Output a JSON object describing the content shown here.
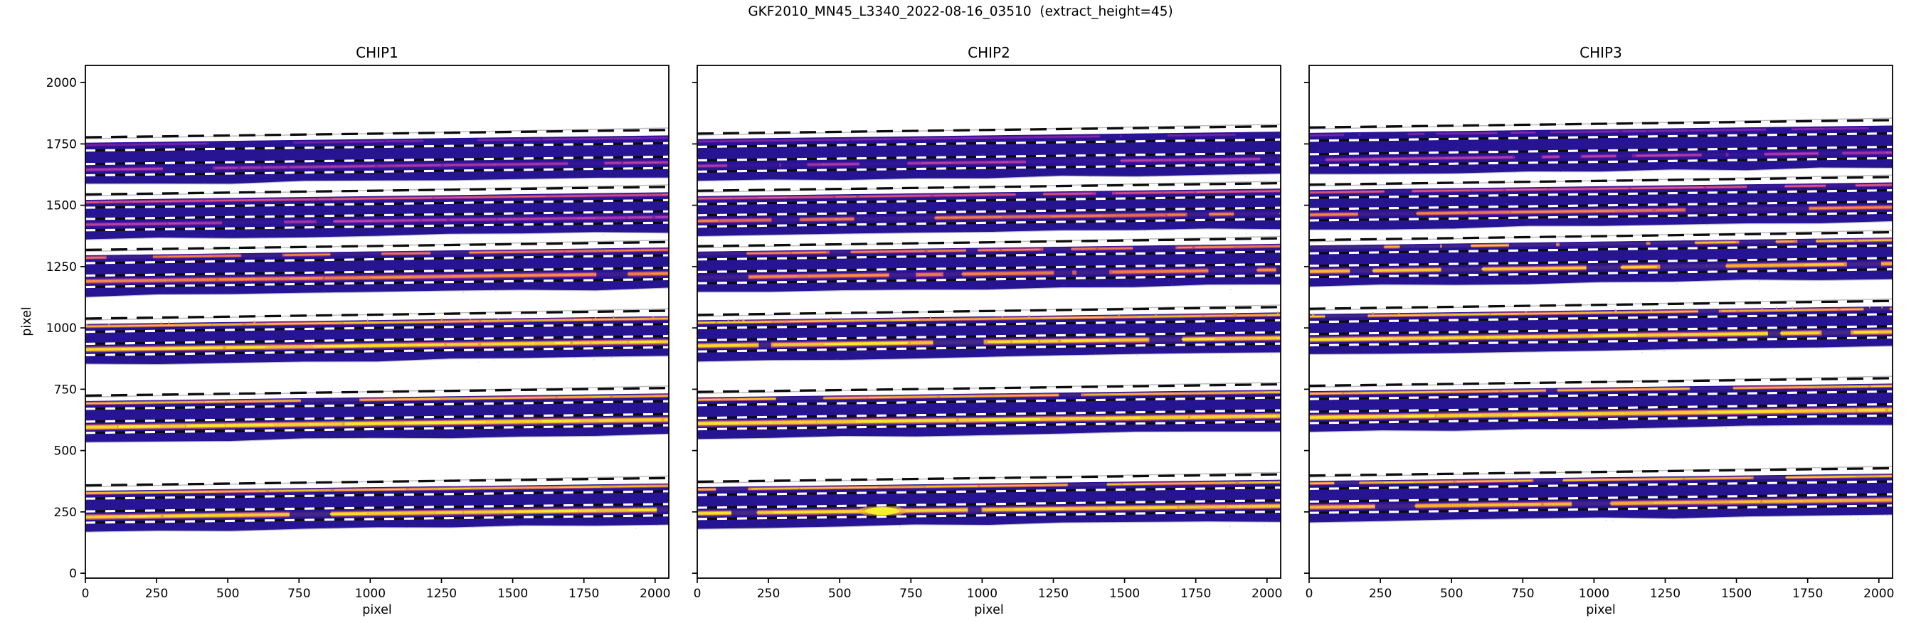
{
  "figure": {
    "suptitle": "GKF2010_MN45_L3340_2022-08-16_03510  (extract_height=45)",
    "extract_height": 45
  },
  "axes": {
    "xlabel": "pixel",
    "ylabel": "pixel",
    "xticks": [
      0,
      250,
      500,
      750,
      1000,
      1250,
      1500,
      1750,
      2000
    ],
    "yticks": [
      0,
      250,
      500,
      750,
      1000,
      1250,
      1500,
      1750,
      2000
    ],
    "xlim": [
      0,
      2048
    ],
    "ylim": [
      -20,
      2070
    ]
  },
  "chart_data": {
    "type": "heatmap",
    "title": "GKF2010_MN45_L3340_2022-08-16_03510  (extract_height=45)",
    "xlabel": "pixel",
    "ylabel": "pixel",
    "xlim": [
      0,
      2048
    ],
    "ylim": [
      -20,
      2070
    ],
    "aperture_half_height": 23,
    "band_top_offset": 10,
    "band_bottom_offset": -62,
    "order_edge_offset": 32,
    "colors": {
      "band_navy": "#261493",
      "band_noise": "#5b3ec0",
      "white_dash": "#ffffff",
      "black_dash": "#0c0c0c",
      "gray_edge": "#b4b4bc",
      "bottom_edge": "#c8c8d2",
      "spine": "#000000"
    },
    "palettes": {
      "violet": {
        "fringe": "#4c119b",
        "mid": "#7a1fa8",
        "core": "#a139b2"
      },
      "magenta": {
        "fringe": "#5e129f",
        "mid": "#962ba6",
        "core": "#c84fa4"
      },
      "pinkred": {
        "fringe": "#8c1fa0",
        "mid": "#c43d85",
        "core": "#ea6a6b"
      },
      "orange": {
        "fringe": "#a82b95",
        "mid": "#e4674f",
        "core": "#f9993f"
      },
      "yelloworange": {
        "fringe": "#cf4a7b",
        "mid": "#f59a33",
        "core": "#fbd32b"
      },
      "yellow": {
        "fringe": "#dd5a70",
        "mid": "#f7b02b",
        "core": "#f6f02d"
      }
    },
    "panels": [
      {
        "id": "chip1",
        "title": "CHIP1",
        "y_offset": 0,
        "bands": [
          {
            "yA": 1745,
            "yB": 1645,
            "slope": 30,
            "A": {
              "pal": "violet",
              "int": 0.55,
              "gap": 0.3,
              "wf": 5.5,
              "wm": 3.5,
              "wc": 2.2,
              "seed": 111
            },
            "B": {
              "pal": "magenta",
              "int": 0.75,
              "gap": 0.2,
              "wf": 7.0,
              "wm": 4.5,
              "wc": 2.6,
              "seed": 112
            }
          },
          {
            "yA": 1512,
            "yB": 1421,
            "slope": 31,
            "A": {
              "pal": "pinkred",
              "int": 0.92,
              "gap": 0.12,
              "wf": 5.0,
              "wm": 3.0,
              "wc": 1.9,
              "seed": 121
            },
            "B": {
              "pal": "magenta",
              "int": 0.85,
              "gap": 0.22,
              "wf": 7.0,
              "wm": 4.5,
              "wc": 2.6,
              "seed": 122
            }
          },
          {
            "yA": 1286,
            "yB": 1190,
            "slope": 32,
            "A": {
              "pal": "orange",
              "int": 0.92,
              "gap": 0.22,
              "wf": 5.5,
              "wm": 3.2,
              "wc": 2.1,
              "seed": 131
            },
            "B": {
              "pal": "orange",
              "int": 1.0,
              "gap": 0.18,
              "wf": 7.5,
              "wm": 4.8,
              "wc": 3.0,
              "seed": 132
            }
          },
          {
            "yA": 1006,
            "yB": 912,
            "slope": 32,
            "spikes": true,
            "A": {
              "pal": "yelloworange",
              "int": 0.95,
              "gap": 0.1,
              "wf": 5.0,
              "wm": 3.0,
              "wc": 2.0,
              "seed": 141
            },
            "B": {
              "pal": "yellow",
              "int": 1.0,
              "gap": 0.14,
              "wf": 8.0,
              "wm": 5.0,
              "wc": 3.2,
              "seed": 142
            }
          },
          {
            "yA": 692,
            "yB": 595,
            "slope": 31,
            "A": {
              "pal": "yelloworange",
              "int": 0.95,
              "gap": 0.12,
              "wf": 5.0,
              "wm": 3.0,
              "wc": 2.0,
              "seed": 151
            },
            "B": {
              "pal": "yellow",
              "int": 1.0,
              "gap": 0.05,
              "wf": 8.5,
              "wm": 5.5,
              "wc": 3.6,
              "seed": 152
            }
          },
          {
            "yA": 326,
            "yB": 229,
            "slope": 30,
            "A": {
              "pal": "yelloworange",
              "int": 0.95,
              "gap": 0.1,
              "wf": 5.0,
              "wm": 3.0,
              "wc": 2.0,
              "seed": 161
            },
            "B": {
              "pal": "yellow",
              "int": 1.0,
              "gap": 0.12,
              "wf": 8.0,
              "wm": 5.0,
              "wc": 3.2,
              "seed": 162
            }
          }
        ]
      },
      {
        "id": "chip2",
        "title": "CHIP2",
        "y_offset": 15,
        "bands": [
          {
            "yA": 1745,
            "yB": 1645,
            "slope": 30,
            "A": {
              "pal": "violet",
              "int": 0.6,
              "gap": 0.28,
              "wf": 5.5,
              "wm": 3.5,
              "wc": 2.2,
              "seed": 211
            },
            "B": {
              "pal": "magenta",
              "int": 0.8,
              "gap": 0.16,
              "wf": 7.0,
              "wm": 4.5,
              "wc": 2.6,
              "seed": 212
            }
          },
          {
            "yA": 1512,
            "yB": 1421,
            "slope": 31,
            "A": {
              "pal": "pinkred",
              "int": 0.95,
              "gap": 0.1,
              "wf": 5.0,
              "wm": 3.0,
              "wc": 1.9,
              "seed": 221
            },
            "B": {
              "pal": "orange",
              "int": 0.85,
              "gap": 0.24,
              "wf": 7.0,
              "wm": 4.5,
              "wc": 2.6,
              "seed": 222
            }
          },
          {
            "yA": 1286,
            "yB": 1190,
            "slope": 32,
            "A": {
              "pal": "orange",
              "int": 0.95,
              "gap": 0.32,
              "wf": 5.5,
              "wm": 3.2,
              "wc": 2.1,
              "seed": 231
            },
            "B": {
              "pal": "orange",
              "int": 1.0,
              "gap": 0.3,
              "wf": 7.5,
              "wm": 4.8,
              "wc": 3.0,
              "seed": 232
            }
          },
          {
            "yA": 1006,
            "yB": 912,
            "slope": 32,
            "spikes": true,
            "A": {
              "pal": "yelloworange",
              "int": 0.95,
              "gap": 0.1,
              "wf": 5.0,
              "wm": 3.0,
              "wc": 2.0,
              "seed": 241
            },
            "B": {
              "pal": "yellow",
              "int": 1.0,
              "gap": 0.15,
              "wf": 8.0,
              "wm": 5.0,
              "wc": 3.2,
              "seed": 242
            }
          },
          {
            "yA": 692,
            "yB": 595,
            "slope": 31,
            "A": {
              "pal": "yelloworange",
              "int": 0.95,
              "gap": 0.12,
              "wf": 5.0,
              "wm": 3.0,
              "wc": 2.0,
              "seed": 251
            },
            "B": {
              "pal": "yellow",
              "int": 1.0,
              "gap": 0.04,
              "wf": 8.5,
              "wm": 5.5,
              "wc": 3.6,
              "seed": 252
            }
          },
          {
            "yA": 326,
            "yB": 229,
            "slope": 30,
            "blob_x": 650,
            "A": {
              "pal": "yelloworange",
              "int": 0.95,
              "gap": 0.1,
              "wf": 5.0,
              "wm": 3.0,
              "wc": 2.0,
              "seed": 261
            },
            "B": {
              "pal": "yellow",
              "int": 1.0,
              "gap": 0.1,
              "wf": 8.0,
              "wm": 5.0,
              "wc": 3.2,
              "seed": 262
            }
          }
        ]
      },
      {
        "id": "chip3",
        "title": "CHIP3",
        "y_offset": 40,
        "bands": [
          {
            "yA": 1745,
            "yB": 1645,
            "slope": 30,
            "A": {
              "pal": "violet",
              "int": 0.6,
              "gap": 0.28,
              "wf": 5.5,
              "wm": 3.5,
              "wc": 2.2,
              "seed": 311
            },
            "B": {
              "pal": "magenta",
              "int": 0.8,
              "gap": 0.18,
              "wf": 7.0,
              "wm": 4.5,
              "wc": 2.6,
              "seed": 312
            }
          },
          {
            "yA": 1512,
            "yB": 1421,
            "slope": 31,
            "A": {
              "pal": "pinkred",
              "int": 0.95,
              "gap": 0.12,
              "wf": 5.0,
              "wm": 3.0,
              "wc": 1.9,
              "seed": 321
            },
            "B": {
              "pal": "orange",
              "int": 0.9,
              "gap": 0.2,
              "wf": 7.0,
              "wm": 4.5,
              "wc": 2.6,
              "seed": 322
            }
          },
          {
            "yA": 1286,
            "yB": 1190,
            "slope": 32,
            "A": {
              "pal": "yelloworange",
              "int": 0.95,
              "gap": 0.33,
              "wf": 5.5,
              "wm": 3.2,
              "wc": 2.1,
              "seed": 331
            },
            "B": {
              "pal": "yelloworange",
              "int": 1.0,
              "gap": 0.3,
              "wf": 7.5,
              "wm": 4.8,
              "wc": 3.0,
              "seed": 332
            }
          },
          {
            "yA": 1006,
            "yB": 912,
            "slope": 32,
            "spikes": true,
            "A": {
              "pal": "yelloworange",
              "int": 0.95,
              "gap": 0.1,
              "wf": 5.0,
              "wm": 3.0,
              "wc": 2.0,
              "seed": 341
            },
            "B": {
              "pal": "yellow",
              "int": 1.0,
              "gap": 0.12,
              "wf": 8.0,
              "wm": 5.0,
              "wc": 3.2,
              "seed": 342
            }
          },
          {
            "yA": 692,
            "yB": 595,
            "slope": 31,
            "A": {
              "pal": "yelloworange",
              "int": 0.95,
              "gap": 0.12,
              "wf": 5.0,
              "wm": 3.0,
              "wc": 2.0,
              "seed": 351
            },
            "B": {
              "pal": "yellow",
              "int": 1.0,
              "gap": 0.05,
              "wf": 8.5,
              "wm": 5.5,
              "wc": 3.6,
              "seed": 352
            }
          },
          {
            "yA": 326,
            "yB": 229,
            "slope": 30,
            "A": {
              "pal": "yelloworange",
              "int": 0.95,
              "gap": 0.1,
              "wf": 5.0,
              "wm": 3.0,
              "wc": 2.0,
              "seed": 361
            },
            "B": {
              "pal": "yelloworange",
              "int": 0.95,
              "gap": 0.18,
              "wf": 8.0,
              "wm": 5.0,
              "wc": 3.2,
              "seed": 362
            }
          }
        ]
      }
    ]
  }
}
